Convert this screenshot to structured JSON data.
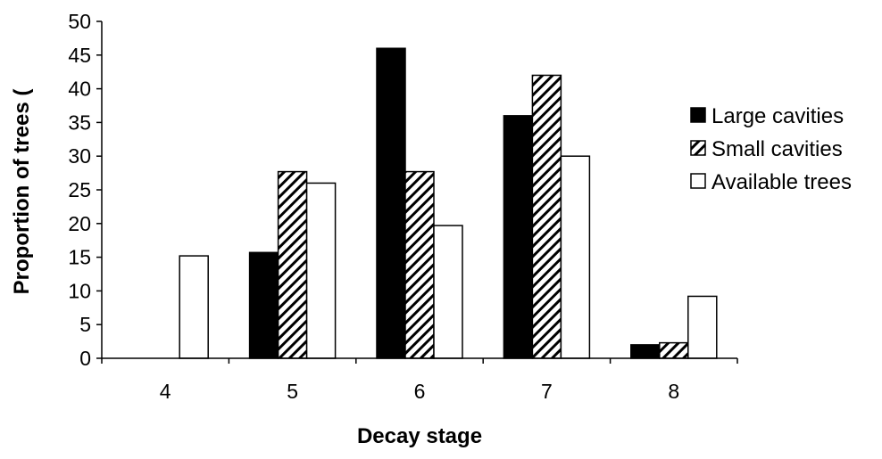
{
  "chart_data": {
    "type": "bar",
    "title": "",
    "xlabel": "Decay stage",
    "ylabel": "Proportion of trees (",
    "categories": [
      "4",
      "5",
      "6",
      "7",
      "8"
    ],
    "ylim": [
      0,
      50
    ],
    "yticks": [
      "0",
      "5",
      "10",
      "15",
      "20",
      "25",
      "30",
      "35",
      "40",
      "45",
      "50"
    ],
    "grid": false,
    "legend_position": "right",
    "series": [
      {
        "name": "Large cavities",
        "values": [
          0,
          15.7,
          46,
          36,
          2
        ],
        "fill": "solid-black"
      },
      {
        "name": "Small cavities",
        "values": [
          0,
          27.7,
          27.7,
          42,
          2.3
        ],
        "fill": "diagonal-hatch"
      },
      {
        "name": "Available trees",
        "values": [
          15.2,
          26,
          19.7,
          30,
          9.2
        ],
        "fill": "white"
      }
    ],
    "colors": {
      "bar_stroke": "#000000",
      "solid": "#000000",
      "hatch": "#000000",
      "open": "#ffffff"
    }
  }
}
